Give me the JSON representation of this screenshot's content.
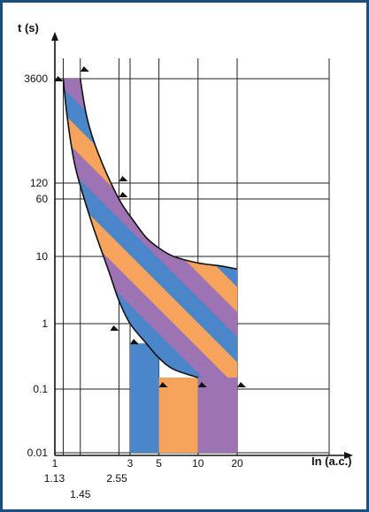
{
  "chart_data": {
    "type": "area",
    "x_scale": "log",
    "y_scale": "log",
    "ylabel": "t (s)",
    "xlabel": "In (a.c.)",
    "x_ticks_bottom": [
      "1",
      "3",
      "5",
      "10",
      "20"
    ],
    "x_ticks_lower": [
      "1.13",
      "1.45",
      "2.55"
    ],
    "x_tick_values_bottom": [
      1,
      3,
      5,
      10,
      20
    ],
    "x_tick_values_lower": [
      1.13,
      1.45,
      2.55
    ],
    "y_ticks": [
      "3600",
      "120",
      "60",
      "10",
      "1",
      "0.1",
      "0.01"
    ],
    "y_tick_values": [
      3600,
      120,
      60,
      10,
      1,
      0.1,
      0.01
    ],
    "grid": true,
    "band": {
      "upper_curve": [
        [
          1.45,
          3600
        ],
        [
          1.6,
          1000
        ],
        [
          1.9,
          300
        ],
        [
          2.55,
          60
        ],
        [
          3.3,
          28
        ],
        [
          4.0,
          18
        ],
        [
          5.0,
          13
        ],
        [
          6.5,
          10
        ],
        [
          10,
          8
        ],
        [
          15,
          7.2
        ],
        [
          20,
          6.5
        ]
      ],
      "lower_curve": [
        [
          1.13,
          3600
        ],
        [
          1.2,
          1000
        ],
        [
          1.35,
          200
        ],
        [
          1.7,
          30
        ],
        [
          2.2,
          6
        ],
        [
          2.55,
          2.2
        ],
        [
          3.0,
          1
        ],
        [
          4.0,
          0.5
        ],
        [
          5.0,
          0.3
        ],
        [
          6.5,
          0.2
        ],
        [
          10,
          0.15
        ]
      ]
    },
    "instantaneous_bands": [
      {
        "from": 3,
        "to": 5,
        "t_max": 0.5,
        "color": "#4a86c9"
      },
      {
        "from": 5,
        "to": 10,
        "t_max": 0.15,
        "color": "#f6a45b"
      },
      {
        "from": 10,
        "to": 20,
        "t_max": 0.15,
        "color": "#9d73b3"
      }
    ],
    "stripe_colors": [
      "#f6a45b",
      "#4a86c9",
      "#9d73b3"
    ],
    "band_outline_color": "#111111",
    "frame_color": "#1a4f80"
  }
}
